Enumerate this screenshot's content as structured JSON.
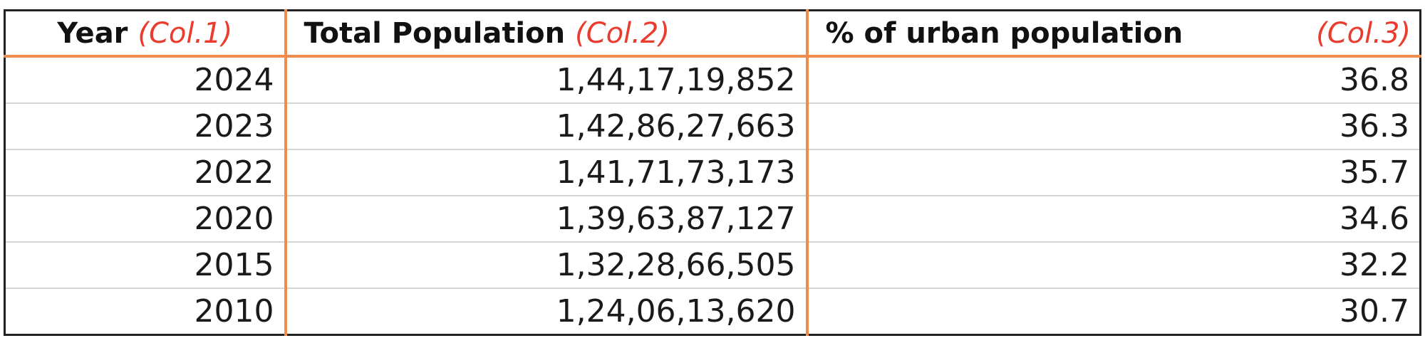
{
  "table": {
    "header": [
      {
        "title": "Year",
        "ref": "(Col.1)"
      },
      {
        "title": "Total Population",
        "ref": "(Col.2)"
      },
      {
        "title": "% of urban population",
        "ref": "(Col.3)"
      }
    ],
    "rows": [
      [
        "2024",
        "1,44,17,19,852",
        "36.8"
      ],
      [
        "2023",
        "1,42,86,27,663",
        "36.3"
      ],
      [
        "2022",
        "1,41,71,73,173",
        "35.7"
      ],
      [
        "2020",
        "1,39,63,87,127",
        "34.6"
      ],
      [
        "2015",
        "1,32,28,66,505",
        "32.2"
      ],
      [
        "2010",
        "1,24,06,13,620",
        "30.7"
      ]
    ]
  }
}
